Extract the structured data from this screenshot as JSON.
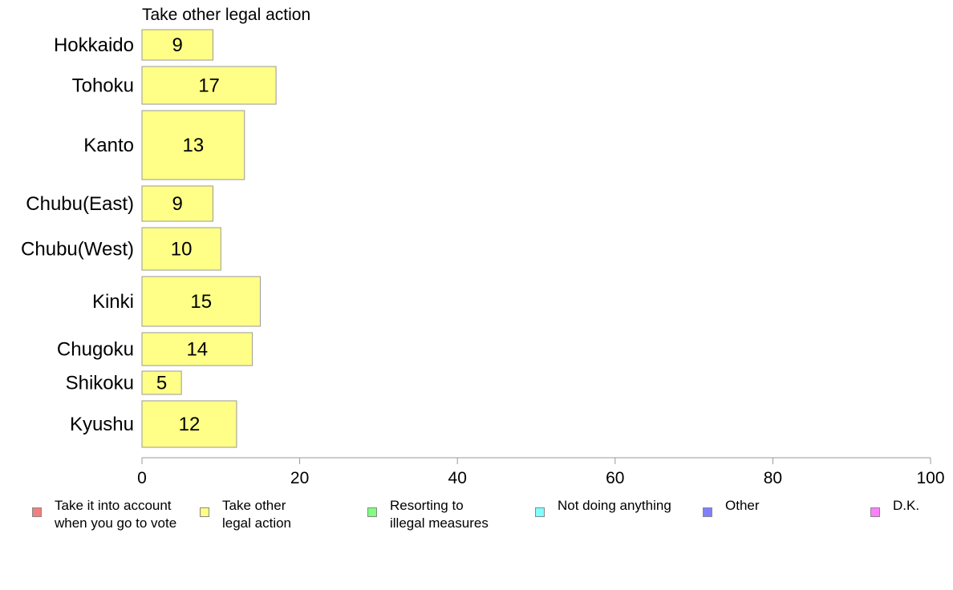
{
  "chart_data": {
    "type": "bar",
    "orientation": "horizontal",
    "title": "Take other legal action",
    "categories": [
      "Hokkaido",
      "Tohoku",
      "Kanto",
      "Chubu(East)",
      "Chubu(West)",
      "Kinki",
      "Chugoku",
      "Shikoku",
      "Kyushu"
    ],
    "values": [
      9,
      17,
      13,
      9,
      10,
      15,
      14,
      5,
      12
    ],
    "data_labels": [
      "9",
      "17",
      "13",
      "9",
      "10",
      "15",
      "14",
      "5",
      "12"
    ],
    "xlim": [
      0,
      100
    ],
    "xticks": [
      "0",
      "20",
      "40",
      "60",
      "80",
      "100"
    ],
    "bar_color": "#ffff88",
    "bar_border": "#999999",
    "grid": false,
    "legend_position": "bottom",
    "legend": [
      {
        "label": "Take it into account\nwhen you go to vote",
        "color": "#f08080"
      },
      {
        "label": "Take other\nlegal action",
        "color": "#ffff88"
      },
      {
        "label": "Resorting to\nillegal measures",
        "color": "#80ff80"
      },
      {
        "label": "Not doing anything",
        "color": "#80ffff"
      },
      {
        "label": "Other",
        "color": "#8080ff"
      },
      {
        "label": "D.K.",
        "color": "#ff80ff"
      }
    ]
  }
}
